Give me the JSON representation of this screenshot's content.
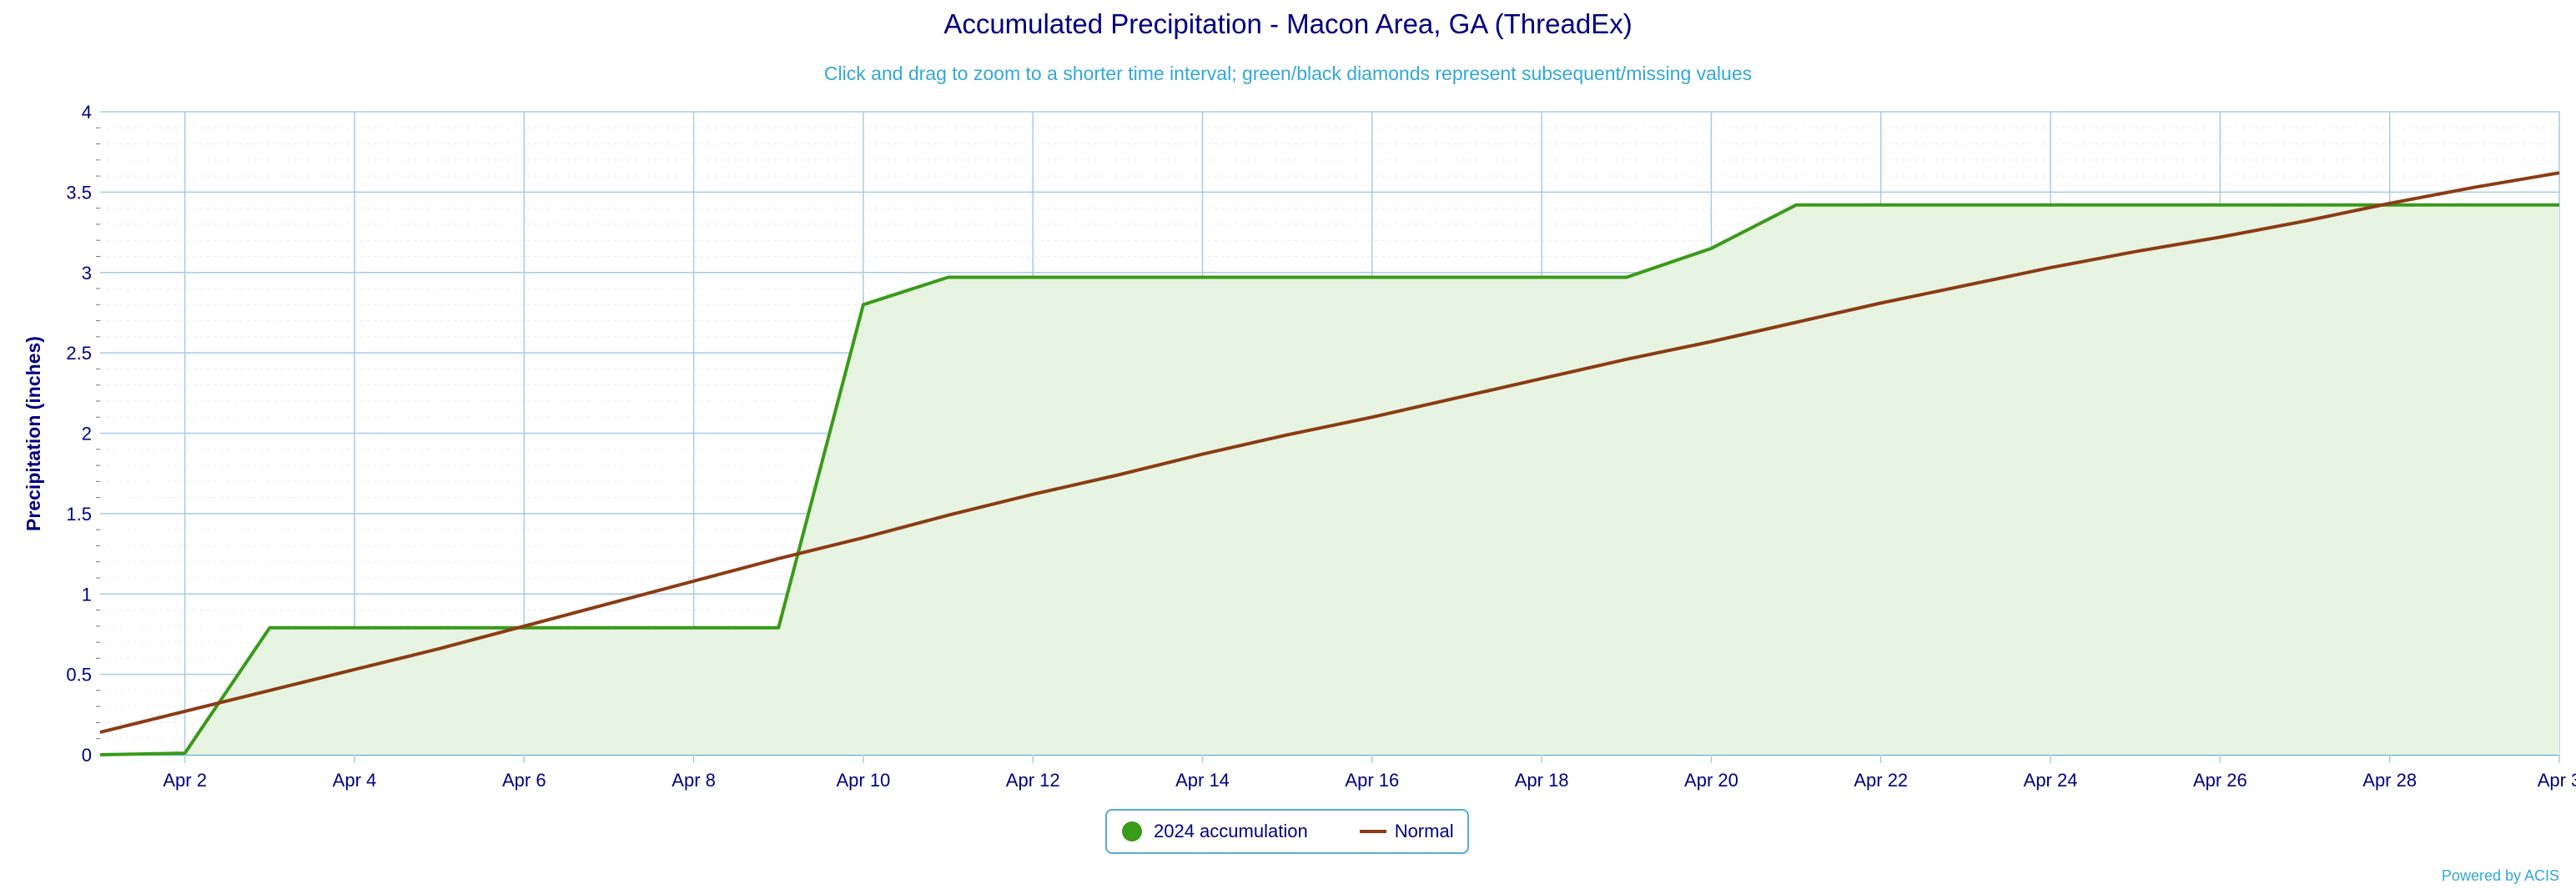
{
  "chart": {
    "title": "Accumulated Precipitation - Macon Area, GA (ThreadEx)",
    "subtitle": "Click and drag to zoom to a shorter time interval; green/black diamonds represent subsequent/missing values",
    "ylabel": "Precipitation (inches)",
    "credit": "Powered by ACIS"
  },
  "legend": {
    "items": [
      {
        "label": "2024 accumulation",
        "icon": "green-circle",
        "color": "#3a9a1a"
      },
      {
        "label": "Normal",
        "icon": "brown-line",
        "color": "#8b3c13"
      }
    ]
  },
  "colors": {
    "accumulation": "#3a9a1a",
    "accumulation_fill": "#e8f4e2",
    "normal": "#8b3c13",
    "grid": "#a8cce3",
    "axis_text": "#000080"
  },
  "chart_data": {
    "type": "area",
    "title": "Accumulated Precipitation - Macon Area, GA (ThreadEx)",
    "xlabel": "",
    "ylabel": "Precipitation (inches)",
    "x": [
      "2024-04-01",
      "2024-04-02",
      "2024-04-03",
      "2024-04-04",
      "2024-04-05",
      "2024-04-06",
      "2024-04-07",
      "2024-04-08",
      "2024-04-09",
      "2024-04-10",
      "2024-04-11",
      "2024-04-12",
      "2024-04-13",
      "2024-04-14",
      "2024-04-15",
      "2024-04-16",
      "2024-04-17",
      "2024-04-18",
      "2024-04-19",
      "2024-04-20",
      "2024-04-21",
      "2024-04-22",
      "2024-04-23",
      "2024-04-24",
      "2024-04-25",
      "2024-04-26",
      "2024-04-27",
      "2024-04-28",
      "2024-04-29",
      "2024-04-30"
    ],
    "xticks": [
      "Apr 2",
      "Apr 4",
      "Apr 6",
      "Apr 8",
      "Apr 10",
      "Apr 12",
      "Apr 14",
      "Apr 16",
      "Apr 18",
      "Apr 20",
      "Apr 22",
      "Apr 24",
      "Apr 26",
      "Apr 28",
      "Apr 3"
    ],
    "yticks": [
      "0",
      "0.5",
      "1",
      "1.5",
      "2",
      "2.5",
      "3",
      "3.5",
      "4"
    ],
    "ylim": [
      0,
      4
    ],
    "grid": true,
    "legend_position": "bottom-center",
    "series": [
      {
        "name": "2024 accumulation",
        "values": [
          0.0,
          0.01,
          0.79,
          0.79,
          0.79,
          0.79,
          0.79,
          0.79,
          0.79,
          2.8,
          2.97,
          2.97,
          2.97,
          2.97,
          2.97,
          2.97,
          2.97,
          2.97,
          2.97,
          3.15,
          3.42,
          3.42,
          3.42,
          3.42,
          3.42,
          3.42,
          3.42,
          3.42,
          3.42,
          3.42
        ]
      },
      {
        "name": "Normal",
        "values": [
          0.14,
          0.27,
          0.4,
          0.53,
          0.66,
          0.8,
          0.94,
          1.08,
          1.22,
          1.35,
          1.49,
          1.62,
          1.74,
          1.87,
          1.99,
          2.1,
          2.22,
          2.34,
          2.46,
          2.57,
          2.69,
          2.81,
          2.92,
          3.03,
          3.13,
          3.22,
          3.32,
          3.43,
          3.53,
          3.62
        ]
      }
    ]
  }
}
